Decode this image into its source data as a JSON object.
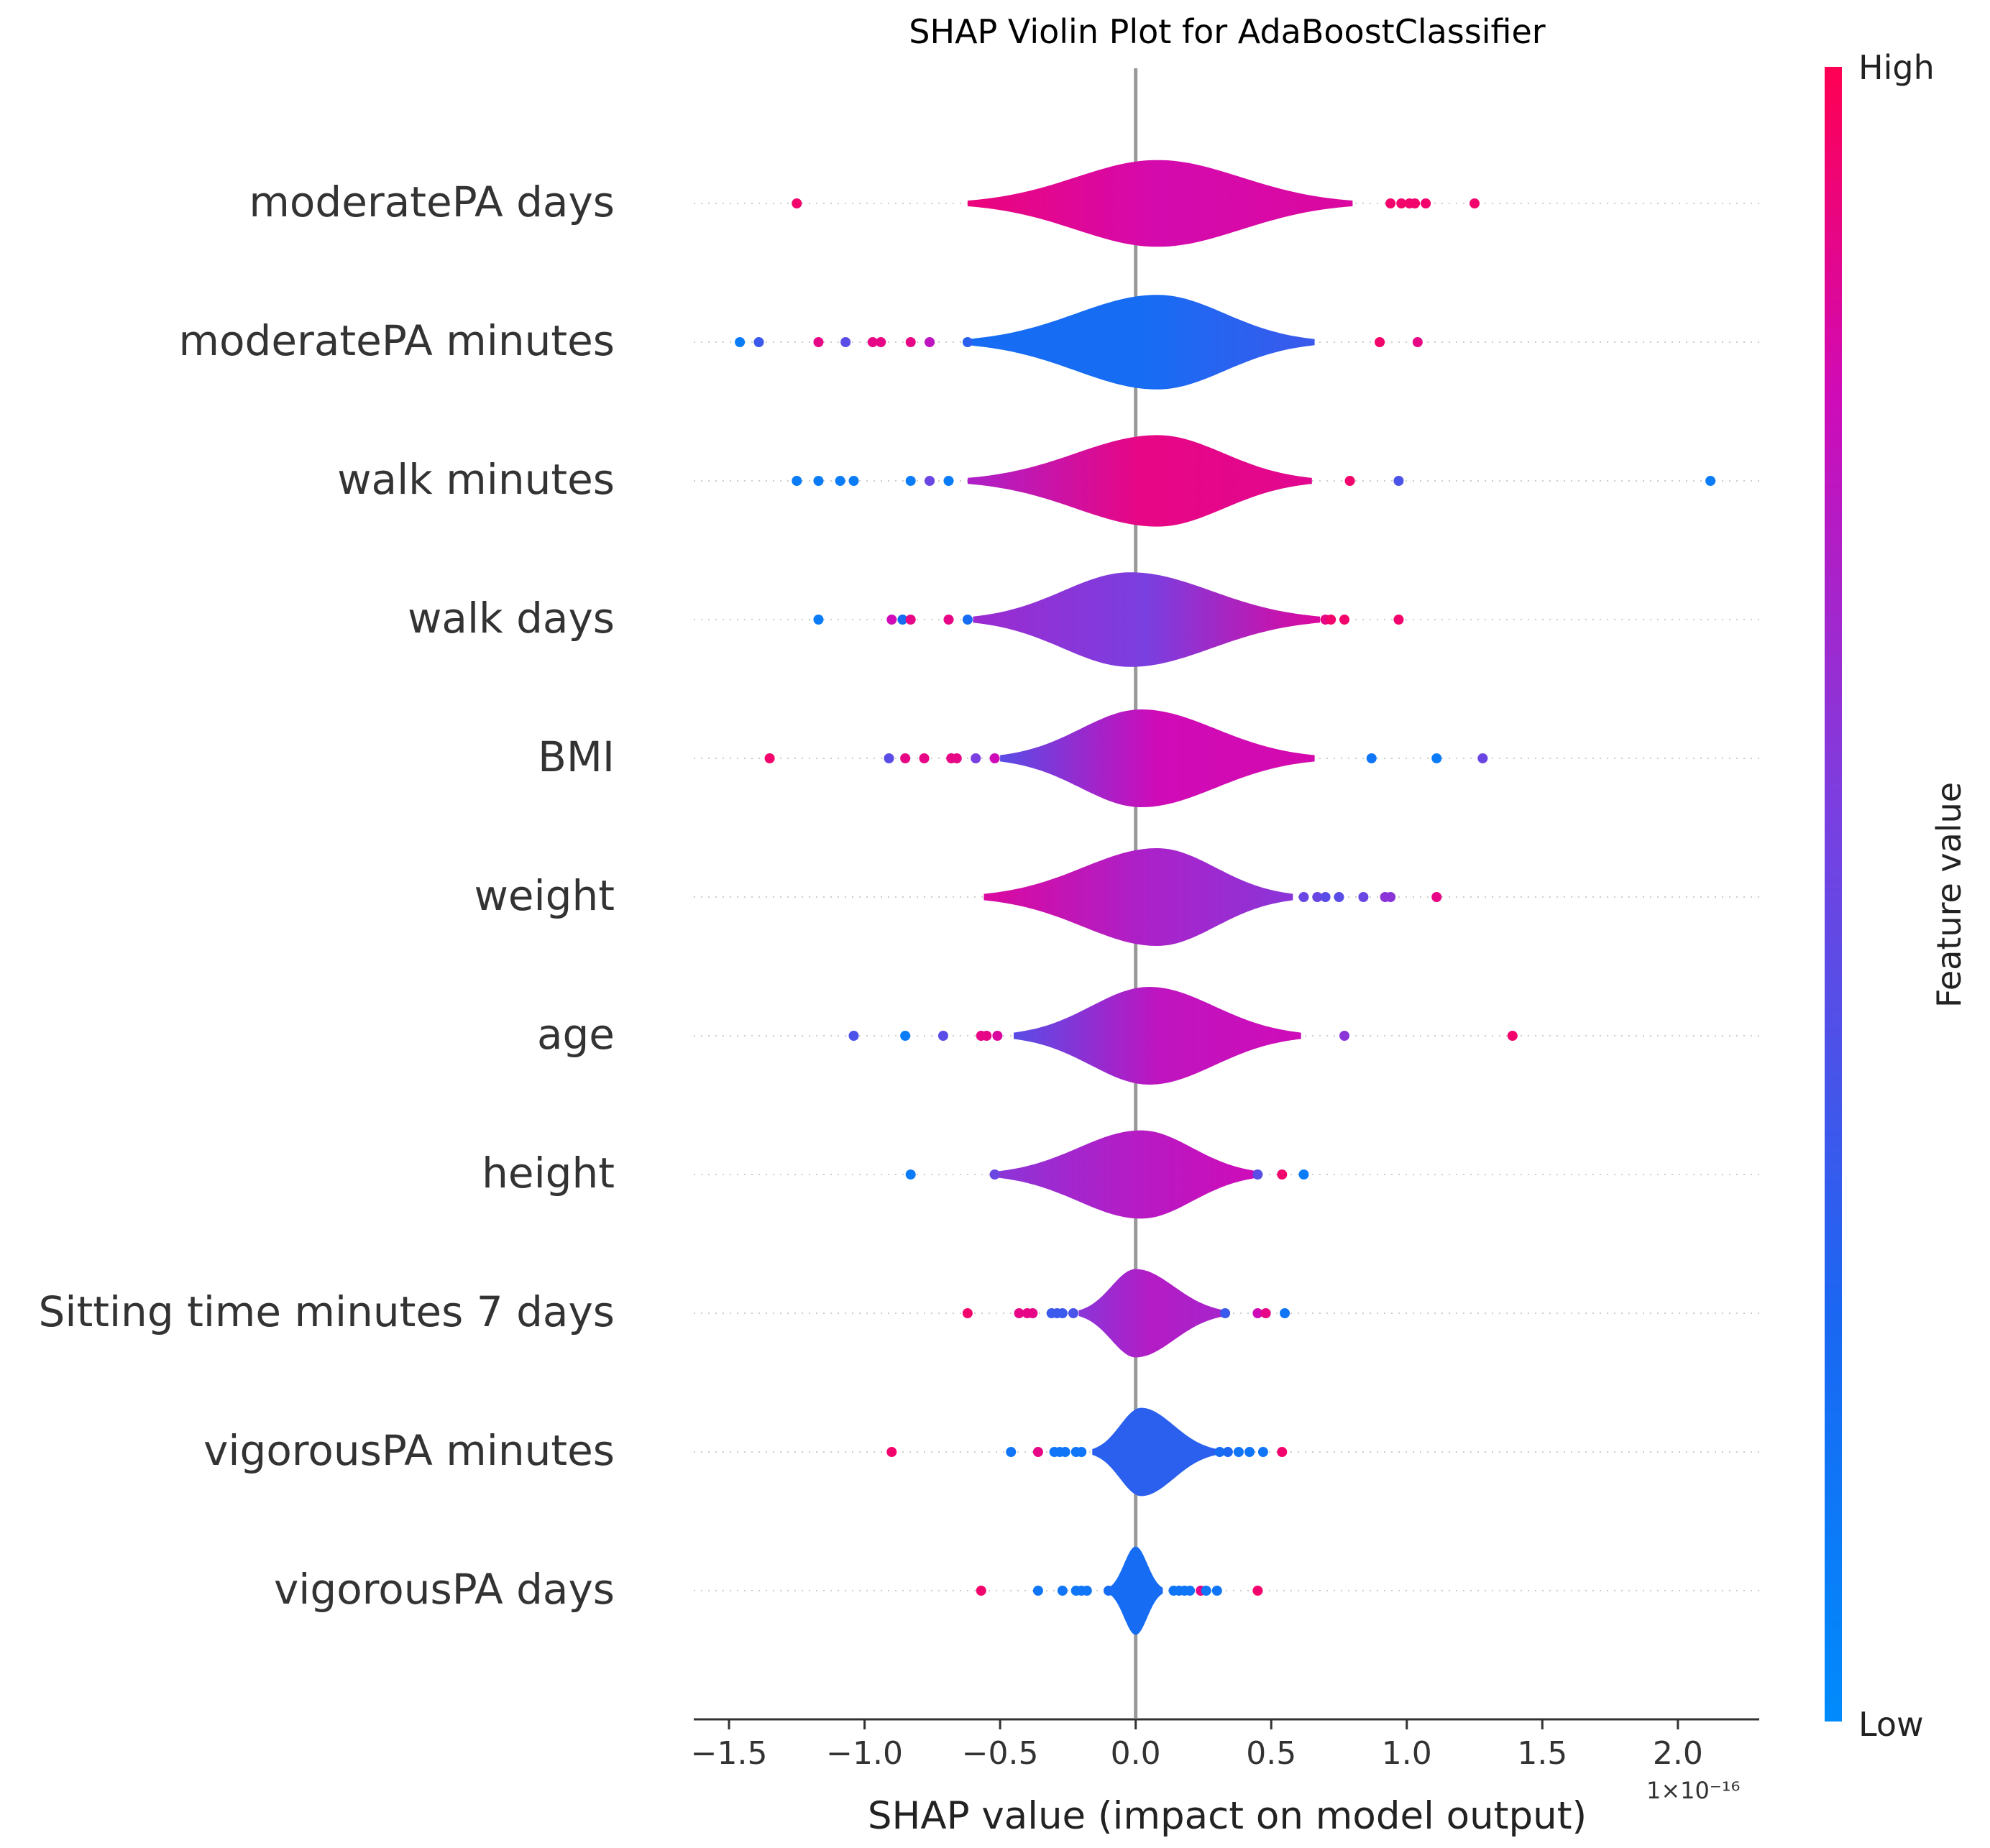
{
  "chart_data": {
    "type": "violin",
    "title": "SHAP Violin Plot for AdaBoostClassifier",
    "xlabel": "SHAP value (impact on model output)",
    "x_multiplier": "1×10⁻¹⁶",
    "xlim": [
      -1.63,
      2.3
    ],
    "xticks": [
      -1.5,
      -1.0,
      -0.5,
      0.0,
      0.5,
      1.0,
      1.5,
      2.0
    ],
    "xtick_labels": [
      "−1.5",
      "−1.0",
      "−0.5",
      "0.0",
      "0.5",
      "1.0",
      "1.5",
      "2.0"
    ],
    "colorbar": {
      "label": "Feature value",
      "high_label": "High",
      "low_label": "Low",
      "low_color": "#008bfb",
      "high_color": "#ff0052"
    },
    "features": [
      {
        "name": "moderatePA days",
        "min": -0.62,
        "max": 0.8,
        "peak": 0.08,
        "width": 0.55,
        "spread": 0.28,
        "color_left": 0.92,
        "color_mid": 0.82,
        "color_right": 0.85,
        "points": [
          [
            -1.25,
            0.95
          ],
          [
            0.94,
            0.95
          ],
          [
            0.98,
            0.95
          ],
          [
            1.01,
            0.95
          ],
          [
            1.03,
            0.95
          ],
          [
            1.07,
            0.95
          ],
          [
            1.25,
            0.95
          ]
        ]
      },
      {
        "name": "moderatePA minutes",
        "min": -0.62,
        "max": 0.66,
        "peak": 0.08,
        "width": 0.6,
        "spread": 0.22,
        "color_left": 0.2,
        "color_mid": 0.2,
        "color_right": 0.35,
        "points": [
          [
            -1.46,
            0.1
          ],
          [
            -1.39,
            0.35
          ],
          [
            -1.17,
            0.9
          ],
          [
            -1.07,
            0.45
          ],
          [
            -0.97,
            0.9
          ],
          [
            -0.94,
            0.9
          ],
          [
            -0.83,
            0.9
          ],
          [
            -0.76,
            0.75
          ],
          [
            -0.62,
            0.3
          ],
          [
            0.9,
            0.95
          ],
          [
            1.04,
            0.9
          ]
        ]
      },
      {
        "name": "walk minutes",
        "min": -0.62,
        "max": 0.65,
        "peak": 0.08,
        "width": 0.58,
        "spread": 0.24,
        "color_left": 0.7,
        "color_mid": 0.9,
        "color_right": 0.88,
        "points": [
          [
            -1.25,
            0.1
          ],
          [
            -1.17,
            0.1
          ],
          [
            -1.09,
            0.1
          ],
          [
            -1.04,
            0.1
          ],
          [
            -0.83,
            0.1
          ],
          [
            -0.76,
            0.5
          ],
          [
            -0.69,
            0.1
          ],
          [
            0.79,
            0.95
          ],
          [
            0.97,
            0.4
          ],
          [
            2.12,
            0.1
          ]
        ]
      },
      {
        "name": "walk days",
        "min": -0.6,
        "max": 0.68,
        "peak": -0.02,
        "width": 0.6,
        "spread": 0.3,
        "color_left": 0.65,
        "color_mid": 0.55,
        "color_right": 0.85,
        "points": [
          [
            -1.17,
            0.1
          ],
          [
            -0.9,
            0.8
          ],
          [
            -0.86,
            0.2
          ],
          [
            -0.83,
            0.9
          ],
          [
            -0.69,
            0.9
          ],
          [
            -0.62,
            0.2
          ],
          [
            0.7,
            0.9
          ],
          [
            0.72,
            0.95
          ],
          [
            0.77,
            0.95
          ],
          [
            0.97,
            0.95
          ]
        ]
      },
      {
        "name": "BMI",
        "min": -0.5,
        "max": 0.66,
        "peak": 0.02,
        "width": 0.62,
        "spread": 0.27,
        "color_left": 0.45,
        "color_mid": 0.8,
        "color_right": 0.82,
        "points": [
          [
            -1.35,
            0.95
          ],
          [
            -0.91,
            0.45
          ],
          [
            -0.85,
            0.9
          ],
          [
            -0.78,
            0.9
          ],
          [
            -0.68,
            0.9
          ],
          [
            -0.66,
            0.9
          ],
          [
            -0.59,
            0.55
          ],
          [
            -0.52,
            0.8
          ],
          [
            0.87,
            0.15
          ],
          [
            1.11,
            0.1
          ],
          [
            1.28,
            0.5
          ]
        ]
      },
      {
        "name": "weight",
        "min": -0.56,
        "max": 0.58,
        "peak": 0.08,
        "width": 0.62,
        "spread": 0.27,
        "color_left": 0.85,
        "color_mid": 0.7,
        "color_right": 0.6,
        "points": [
          [
            0.62,
            0.5
          ],
          [
            0.67,
            0.5
          ],
          [
            0.7,
            0.45
          ],
          [
            0.75,
            0.45
          ],
          [
            0.84,
            0.5
          ],
          [
            0.92,
            0.6
          ],
          [
            0.94,
            0.6
          ],
          [
            1.11,
            0.9
          ]
        ]
      },
      {
        "name": "age",
        "min": -0.45,
        "max": 0.61,
        "peak": 0.05,
        "width": 0.62,
        "spread": 0.26,
        "color_left": 0.45,
        "color_mid": 0.75,
        "color_right": 0.8,
        "points": [
          [
            -1.04,
            0.4
          ],
          [
            -0.85,
            0.1
          ],
          [
            -0.71,
            0.45
          ],
          [
            -0.57,
            0.9
          ],
          [
            -0.55,
            0.9
          ],
          [
            -0.51,
            0.85
          ],
          [
            0.77,
            0.6
          ],
          [
            1.39,
            0.95
          ]
        ]
      },
      {
        "name": "height",
        "min": -0.52,
        "max": 0.46,
        "peak": 0.02,
        "width": 0.56,
        "spread": 0.22,
        "color_left": 0.6,
        "color_mid": 0.72,
        "color_right": 0.8,
        "points": [
          [
            -0.83,
            0.1
          ],
          [
            -0.52,
            0.5
          ],
          [
            0.45,
            0.45
          ],
          [
            0.54,
            0.95
          ],
          [
            0.62,
            0.1
          ]
        ]
      },
      {
        "name": "Sitting time minutes 7 days",
        "min": -0.21,
        "max": 0.33,
        "peak": 0.0,
        "width": 0.56,
        "spread": 0.11,
        "color_left": 0.6,
        "color_mid": 0.72,
        "color_right": 0.68,
        "points": [
          [
            -0.62,
            0.95
          ],
          [
            -0.43,
            0.9
          ],
          [
            -0.4,
            0.9
          ],
          [
            -0.38,
            0.9
          ],
          [
            -0.31,
            0.35
          ],
          [
            -0.29,
            0.35
          ],
          [
            -0.27,
            0.35
          ],
          [
            -0.23,
            0.4
          ],
          [
            0.33,
            0.35
          ],
          [
            0.45,
            0.8
          ],
          [
            0.48,
            0.9
          ],
          [
            0.55,
            0.15
          ]
        ]
      },
      {
        "name": "vigorousPA minutes",
        "min": -0.16,
        "max": 0.3,
        "peak": 0.02,
        "width": 0.56,
        "spread": 0.1,
        "color_left": 0.3,
        "color_mid": 0.3,
        "color_right": 0.3,
        "points": [
          [
            -0.9,
            0.95
          ],
          [
            -0.46,
            0.15
          ],
          [
            -0.36,
            0.9
          ],
          [
            -0.3,
            0.15
          ],
          [
            -0.28,
            0.15
          ],
          [
            -0.26,
            0.15
          ],
          [
            -0.22,
            0.15
          ],
          [
            -0.2,
            0.15
          ],
          [
            0.31,
            0.2
          ],
          [
            0.34,
            0.25
          ],
          [
            0.38,
            0.15
          ],
          [
            0.42,
            0.15
          ],
          [
            0.47,
            0.15
          ],
          [
            0.54,
            0.95
          ]
        ]
      },
      {
        "name": "vigorousPA days",
        "min": -0.1,
        "max": 0.1,
        "peak": 0.0,
        "width": 0.56,
        "spread": 0.05,
        "color_left": 0.2,
        "color_mid": 0.2,
        "color_right": 0.2,
        "points": [
          [
            -0.57,
            0.95
          ],
          [
            -0.36,
            0.15
          ],
          [
            -0.27,
            0.15
          ],
          [
            -0.22,
            0.15
          ],
          [
            -0.2,
            0.15
          ],
          [
            -0.18,
            0.15
          ],
          [
            -0.1,
            0.2
          ],
          [
            0.14,
            0.15
          ],
          [
            0.16,
            0.15
          ],
          [
            0.18,
            0.15
          ],
          [
            0.2,
            0.15
          ],
          [
            0.24,
            0.9
          ],
          [
            0.26,
            0.15
          ],
          [
            0.3,
            0.15
          ],
          [
            0.45,
            0.95
          ]
        ]
      }
    ]
  }
}
